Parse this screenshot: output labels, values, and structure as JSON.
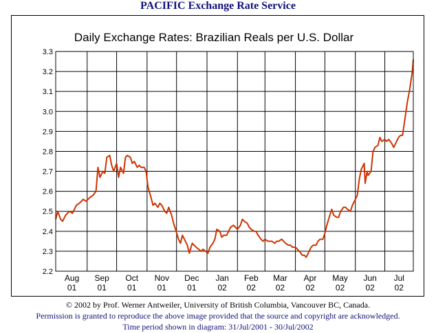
{
  "header": {
    "title": "PACIFIC Exchange Rate Service"
  },
  "footer": {
    "copyright": "© 2002 by Prof. Werner Antweiler, University of British Columbia, Vancouver BC, Canada.",
    "permission": "Permission is granted to reproduce the above image provided that the source and copyright are acknowledged.",
    "period": "Time period shown in diagram: 31/Jul/2001 - 30/Jul/2002"
  },
  "colors": {
    "series": "#cc3300",
    "grid": "#000000",
    "background": "#ffffff",
    "header_text": "#10107a"
  },
  "chart_data": {
    "type": "line",
    "title": "Daily Exchange Rates: Brazilian Reals per U.S. Dollar",
    "xlabel": "",
    "ylabel": "",
    "ylim": [
      2.2,
      3.3
    ],
    "yticks": [
      "2.2",
      "2.3",
      "2.4",
      "2.5",
      "2.6",
      "2.7",
      "2.8",
      "2.9",
      "3.0",
      "3.1",
      "3.2",
      "3.3"
    ],
    "xlim": [
      "2001-07-31",
      "2002-07-30"
    ],
    "month_ticks": [
      {
        "month": "Aug",
        "year": "01",
        "start": "2001-08-01"
      },
      {
        "month": "Sep",
        "year": "01",
        "start": "2001-09-01"
      },
      {
        "month": "Oct",
        "year": "01",
        "start": "2001-10-01"
      },
      {
        "month": "Nov",
        "year": "01",
        "start": "2001-11-01"
      },
      {
        "month": "Dec",
        "year": "01",
        "start": "2001-12-01"
      },
      {
        "month": "Jan",
        "year": "02",
        "start": "2002-01-01"
      },
      {
        "month": "Feb",
        "year": "02",
        "start": "2002-02-01"
      },
      {
        "month": "Mar",
        "year": "02",
        "start": "2002-03-01"
      },
      {
        "month": "Apr",
        "year": "02",
        "start": "2002-04-01"
      },
      {
        "month": "May",
        "year": "02",
        "start": "2002-05-01"
      },
      {
        "month": "Jun",
        "year": "02",
        "start": "2002-06-01"
      },
      {
        "month": "Jul",
        "year": "02",
        "start": "2002-07-01"
      }
    ],
    "grid": true,
    "legend": "none",
    "series": [
      {
        "color": "#cc3300",
        "points": [
          [
            "2001-07-31",
            2.46
          ],
          [
            "2001-08-02",
            2.5
          ],
          [
            "2001-08-05",
            2.46
          ],
          [
            "2001-08-07",
            2.45
          ],
          [
            "2001-08-10",
            2.48
          ],
          [
            "2001-08-14",
            2.5
          ],
          [
            "2001-08-17",
            2.49
          ],
          [
            "2001-08-21",
            2.53
          ],
          [
            "2001-08-24",
            2.54
          ],
          [
            "2001-08-28",
            2.56
          ],
          [
            "2001-08-31",
            2.55
          ],
          [
            "2001-09-04",
            2.57
          ],
          [
            "2001-09-07",
            2.58
          ],
          [
            "2001-09-10",
            2.6
          ],
          [
            "2001-09-12",
            2.72
          ],
          [
            "2001-09-14",
            2.67
          ],
          [
            "2001-09-17",
            2.7
          ],
          [
            "2001-09-19",
            2.69
          ],
          [
            "2001-09-21",
            2.77
          ],
          [
            "2001-09-24",
            2.78
          ],
          [
            "2001-09-26",
            2.73
          ],
          [
            "2001-09-28",
            2.7
          ],
          [
            "2001-10-01",
            2.74
          ],
          [
            "2001-10-03",
            2.67
          ],
          [
            "2001-10-05",
            2.72
          ],
          [
            "2001-10-08",
            2.69
          ],
          [
            "2001-10-10",
            2.77
          ],
          [
            "2001-10-12",
            2.78
          ],
          [
            "2001-10-15",
            2.77
          ],
          [
            "2001-10-17",
            2.74
          ],
          [
            "2001-10-19",
            2.75
          ],
          [
            "2001-10-22",
            2.72
          ],
          [
            "2001-10-24",
            2.73
          ],
          [
            "2001-10-26",
            2.72
          ],
          [
            "2001-10-29",
            2.72
          ],
          [
            "2001-10-31",
            2.7
          ],
          [
            "2001-11-02",
            2.62
          ],
          [
            "2001-11-05",
            2.57
          ],
          [
            "2001-11-07",
            2.53
          ],
          [
            "2001-11-09",
            2.54
          ],
          [
            "2001-11-12",
            2.52
          ],
          [
            "2001-11-14",
            2.54
          ],
          [
            "2001-11-16",
            2.53
          ],
          [
            "2001-11-19",
            2.5
          ],
          [
            "2001-11-21",
            2.49
          ],
          [
            "2001-11-23",
            2.52
          ],
          [
            "2001-11-26",
            2.48
          ],
          [
            "2001-11-28",
            2.44
          ],
          [
            "2001-11-30",
            2.41
          ],
          [
            "2001-12-03",
            2.36
          ],
          [
            "2001-12-05",
            2.34
          ],
          [
            "2001-12-07",
            2.38
          ],
          [
            "2001-12-10",
            2.35
          ],
          [
            "2001-12-12",
            2.33
          ],
          [
            "2001-12-14",
            2.29
          ],
          [
            "2001-12-17",
            2.34
          ],
          [
            "2001-12-19",
            2.33
          ],
          [
            "2001-12-21",
            2.32
          ],
          [
            "2001-12-26",
            2.3
          ],
          [
            "2001-12-28",
            2.31
          ],
          [
            "2002-01-02",
            2.29
          ],
          [
            "2002-01-04",
            2.32
          ],
          [
            "2002-01-07",
            2.34
          ],
          [
            "2002-01-09",
            2.36
          ],
          [
            "2002-01-11",
            2.41
          ],
          [
            "2002-01-14",
            2.4
          ],
          [
            "2002-01-16",
            2.37
          ],
          [
            "2002-01-18",
            2.38
          ],
          [
            "2002-01-21",
            2.38
          ],
          [
            "2002-01-23",
            2.4
          ],
          [
            "2002-01-25",
            2.42
          ],
          [
            "2002-01-28",
            2.43
          ],
          [
            "2002-01-30",
            2.42
          ],
          [
            "2002-02-01",
            2.41
          ],
          [
            "2002-02-04",
            2.43
          ],
          [
            "2002-02-06",
            2.46
          ],
          [
            "2002-02-08",
            2.45
          ],
          [
            "2002-02-11",
            2.44
          ],
          [
            "2002-02-13",
            2.42
          ],
          [
            "2002-02-15",
            2.41
          ],
          [
            "2002-02-18",
            2.4
          ],
          [
            "2002-02-20",
            2.4
          ],
          [
            "2002-02-22",
            2.38
          ],
          [
            "2002-02-25",
            2.36
          ],
          [
            "2002-02-27",
            2.35
          ],
          [
            "2002-03-01",
            2.36
          ],
          [
            "2002-03-04",
            2.35
          ],
          [
            "2002-03-06",
            2.35
          ],
          [
            "2002-03-08",
            2.35
          ],
          [
            "2002-03-11",
            2.34
          ],
          [
            "2002-03-13",
            2.35
          ],
          [
            "2002-03-15",
            2.35
          ],
          [
            "2002-03-18",
            2.36
          ],
          [
            "2002-03-20",
            2.35
          ],
          [
            "2002-03-22",
            2.34
          ],
          [
            "2002-03-25",
            2.33
          ],
          [
            "2002-03-27",
            2.33
          ],
          [
            "2002-03-29",
            2.32
          ],
          [
            "2002-04-01",
            2.32
          ],
          [
            "2002-04-03",
            2.31
          ],
          [
            "2002-04-05",
            2.3
          ],
          [
            "2002-04-08",
            2.28
          ],
          [
            "2002-04-10",
            2.28
          ],
          [
            "2002-04-12",
            2.27
          ],
          [
            "2002-04-15",
            2.3
          ],
          [
            "2002-04-17",
            2.32
          ],
          [
            "2002-04-19",
            2.33
          ],
          [
            "2002-04-22",
            2.33
          ],
          [
            "2002-04-24",
            2.35
          ],
          [
            "2002-04-26",
            2.36
          ],
          [
            "2002-04-29",
            2.36
          ],
          [
            "2002-05-01",
            2.39
          ],
          [
            "2002-05-03",
            2.43
          ],
          [
            "2002-05-06",
            2.48
          ],
          [
            "2002-05-08",
            2.51
          ],
          [
            "2002-05-10",
            2.48
          ],
          [
            "2002-05-13",
            2.47
          ],
          [
            "2002-05-15",
            2.47
          ],
          [
            "2002-05-17",
            2.5
          ],
          [
            "2002-05-20",
            2.52
          ],
          [
            "2002-05-22",
            2.52
          ],
          [
            "2002-05-24",
            2.51
          ],
          [
            "2002-05-27",
            2.5
          ],
          [
            "2002-05-29",
            2.53
          ],
          [
            "2002-05-31",
            2.55
          ],
          [
            "2002-06-03",
            2.58
          ],
          [
            "2002-06-05",
            2.66
          ],
          [
            "2002-06-07",
            2.71
          ],
          [
            "2002-06-10",
            2.74
          ],
          [
            "2002-06-11",
            2.64
          ],
          [
            "2002-06-13",
            2.7
          ],
          [
            "2002-06-14",
            2.68
          ],
          [
            "2002-06-17",
            2.7
          ],
          [
            "2002-06-19",
            2.8
          ],
          [
            "2002-06-21",
            2.82
          ],
          [
            "2002-06-24",
            2.83
          ],
          [
            "2002-06-26",
            2.87
          ],
          [
            "2002-06-28",
            2.85
          ],
          [
            "2002-07-01",
            2.86
          ],
          [
            "2002-07-03",
            2.85
          ],
          [
            "2002-07-05",
            2.86
          ],
          [
            "2002-07-08",
            2.84
          ],
          [
            "2002-07-10",
            2.82
          ],
          [
            "2002-07-12",
            2.84
          ],
          [
            "2002-07-15",
            2.87
          ],
          [
            "2002-07-17",
            2.88
          ],
          [
            "2002-07-19",
            2.88
          ],
          [
            "2002-07-22",
            2.98
          ],
          [
            "2002-07-24",
            3.05
          ],
          [
            "2002-07-26",
            3.1
          ],
          [
            "2002-07-29",
            3.2
          ],
          [
            "2002-07-30",
            3.26
          ]
        ]
      }
    ]
  }
}
